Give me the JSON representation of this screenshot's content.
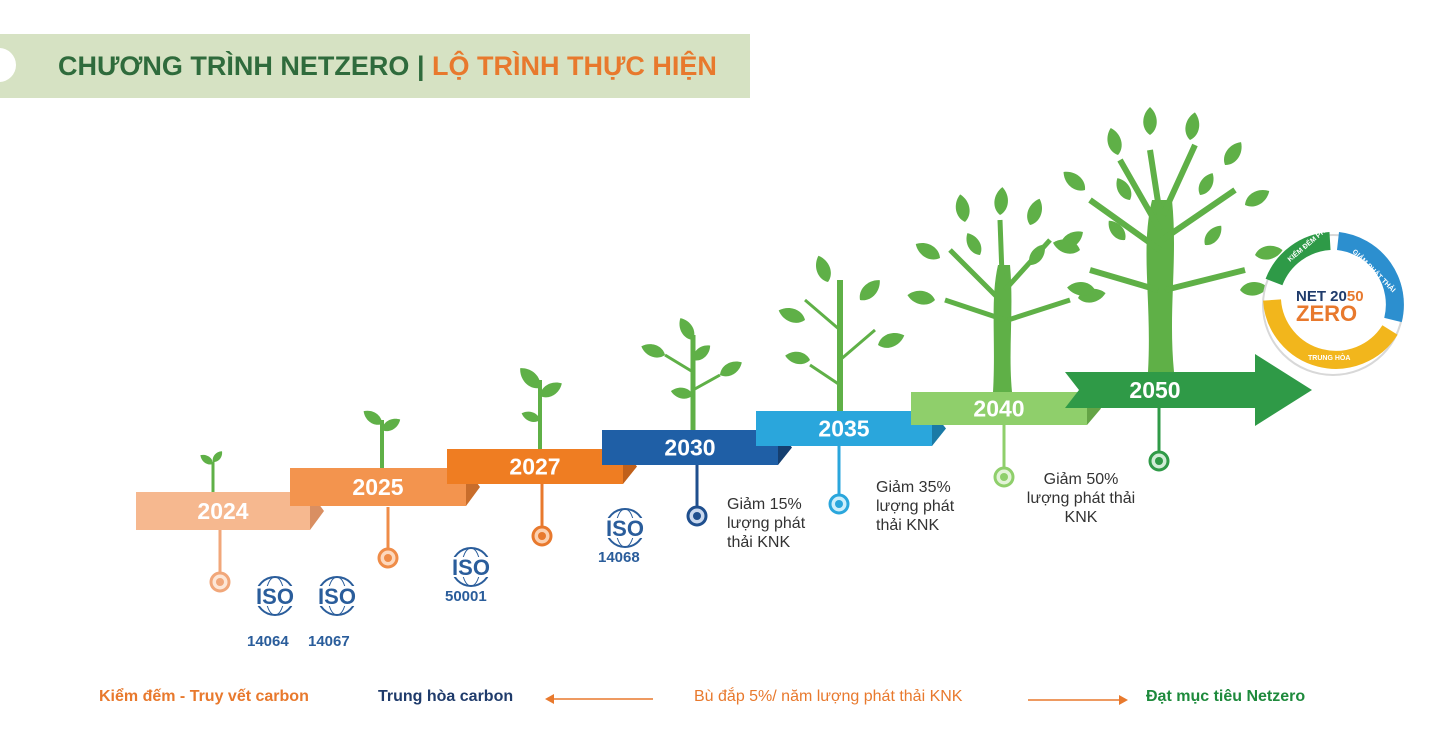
{
  "header": {
    "part1": "CHƯƠNG TRÌNH NETZERO",
    "separator": "|",
    "part2": "LỘ TRÌNH THỰC HIỆN"
  },
  "steps": [
    {
      "year": "2024",
      "color": "#f6b88f",
      "dark": "#d98f62"
    },
    {
      "year": "2025",
      "color": "#f3944e",
      "dark": "#c86d2b"
    },
    {
      "year": "2027",
      "color": "#ef7d22",
      "dark": "#c0601a"
    },
    {
      "year": "2030",
      "color": "#1f5fa6",
      "dark": "#153f70"
    },
    {
      "year": "2035",
      "color": "#2aa6dc",
      "dark": "#1a7aa6"
    },
    {
      "year": "2040",
      "color": "#8fcf6b",
      "dark": "#64a446"
    },
    {
      "year": "2050",
      "color": "#2f9a47",
      "dark": "#1d6b30"
    }
  ],
  "iso": {
    "logo_text": "ISO",
    "codes": [
      "14064",
      "14067",
      "50001",
      "14068"
    ]
  },
  "reductions": [
    {
      "line1": "Giảm  15%",
      "line2": "lượng  phát",
      "line3": "thải KNK"
    },
    {
      "line1": "Giảm  35%",
      "line2": "lượng  phát",
      "line3": "thải KNK"
    },
    {
      "line1": "Giảm 50%",
      "line2": "lượng phát thải",
      "line3": "KNK"
    }
  ],
  "badge": {
    "line1a": "NET 20",
    "line1b": "50",
    "line2": "ZERO",
    "arc1": "KIỂM ĐẾM PHÁT THẢI",
    "arc2": "GIẢM PHÁT THẢI",
    "arc3": "TRUNG HÒA"
  },
  "legend": {
    "item1": "Kiểm đếm - Truy vết carbon",
    "item2": "Trung hòa carbon",
    "item3": "Bù đắp 5%/ năm lượng phát thải KNK",
    "item4": "Đạt mục tiêu Netzero"
  },
  "colors": {
    "header_bg": "#d6e2c3",
    "green_text": "#2f6b3c",
    "orange_text": "#e8792d",
    "navy_text": "#1f3b6b",
    "legend_green": "#1e8a3c",
    "leaf": "#5fb047"
  }
}
